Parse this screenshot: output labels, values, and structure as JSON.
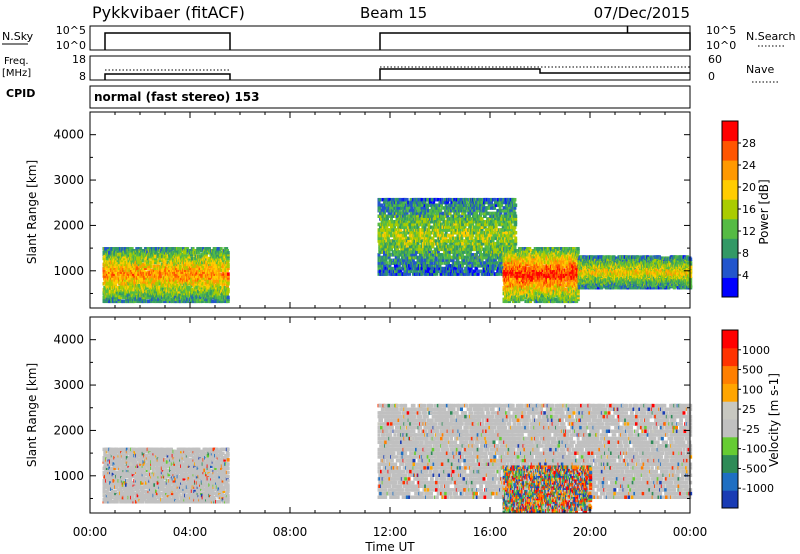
{
  "header": {
    "radar": "Pykkvibaer (fitACF)",
    "beam": "Beam 15",
    "date": "07/Dec/2015"
  },
  "noise_panel": {
    "left_label": "N.Sky",
    "right_label": "N.Search",
    "left_ticks": [
      "10^5",
      "10^0"
    ],
    "right_ticks": [
      "10^5",
      "10^0"
    ]
  },
  "freq_panel": {
    "left_label_1": "Freq.",
    "left_label_2": "[MHz]",
    "right_label": "Nave",
    "left_ticks": [
      "18",
      "8"
    ],
    "right_ticks": [
      "60",
      "0"
    ]
  },
  "cpid": {
    "label": "CPID",
    "mode_text": "normal (fast stereo) 153"
  },
  "colors": {
    "power": [
      "#0000ff",
      "#2255cc",
      "#339966",
      "#55bb44",
      "#aacc00",
      "#ffcc00",
      "#ff9900",
      "#ff5500",
      "#ff0000"
    ],
    "velocity": [
      "#1a3cb4",
      "#1f6fc2",
      "#2e8b57",
      "#66cc33",
      "#c0c0c0",
      "#c8c8c0",
      "#ffa500",
      "#ff7f00",
      "#ff3300",
      "#ff0000"
    ],
    "ground_scatter": "#c0c0c0"
  },
  "chart_data": [
    {
      "type": "heatmap",
      "panel": "power",
      "ylabel": "Slant Range [km]",
      "yticks": [
        "4000",
        "3000",
        "2000",
        "1000"
      ],
      "ylim": [
        180,
        4500
      ],
      "colorbar": {
        "label": "Power [dB]",
        "ticks": [
          "28",
          "24",
          "20",
          "16",
          "12",
          "8",
          "4"
        ],
        "range": [
          0,
          32
        ]
      },
      "echo_regions": [
        {
          "t": [
            0.5,
            5.5
          ],
          "range": [
            300,
            1500
          ],
          "peak_db": 24
        },
        {
          "t": [
            11.5,
            17.0
          ],
          "range": [
            900,
            2600
          ],
          "peak_db": 16
        },
        {
          "t": [
            16.5,
            19.5
          ],
          "range": [
            300,
            1500
          ],
          "peak_db": 30
        },
        {
          "t": [
            19.5,
            24.0
          ],
          "range": [
            600,
            1300
          ],
          "peak_db": 20
        }
      ]
    },
    {
      "type": "heatmap",
      "panel": "velocity",
      "ylabel": "Slant Range [km]",
      "yticks": [
        "4000",
        "3000",
        "2000",
        "1000"
      ],
      "ylim": [
        180,
        4500
      ],
      "colorbar": {
        "label": "Velocity [m s-1]",
        "ticks": [
          "1000",
          "500",
          "100",
          "25",
          "-25",
          "-100",
          "-500",
          "-1000"
        ]
      },
      "echo_regions": [
        {
          "t": [
            0.5,
            5.5
          ],
          "range": [
            400,
            1600
          ],
          "dominant": "ground scatter"
        },
        {
          "t": [
            11.5,
            24.0
          ],
          "range": [
            500,
            2600
          ],
          "dominant": "ground scatter"
        },
        {
          "t": [
            16.5,
            20.0
          ],
          "range": [
            200,
            1200
          ],
          "dominant": "mixed"
        }
      ]
    }
  ],
  "xaxis": {
    "label": "Time UT",
    "ticks": [
      "00:00",
      "04:00",
      "08:00",
      "12:00",
      "16:00",
      "20:00",
      "00:00"
    ],
    "range_hours": [
      0,
      24
    ]
  },
  "noise_series": {
    "segments": [
      [
        0.6,
        5.6
      ],
      [
        11.6,
        24.0
      ]
    ],
    "spike_time": 21.5
  },
  "freq_series": {
    "segments": [
      [
        0.6,
        5.6
      ],
      [
        11.6,
        24.0
      ]
    ],
    "step_time": 18.0
  }
}
